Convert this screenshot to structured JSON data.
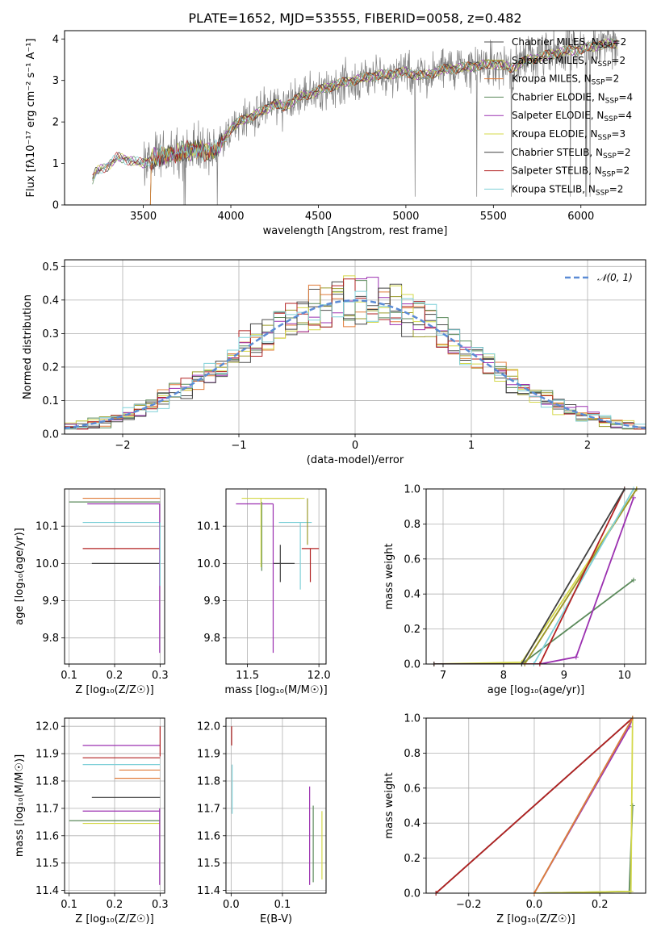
{
  "figure": {
    "title": "PLATE=1652, MJD=53555, FIBERID=0058, z=0.482"
  },
  "colors": {
    "data": "#808080",
    "Chabrier MILES": "#4f4f4f",
    "Salpeter MILES": "#9a9a2a",
    "Kroupa MILES": "#e07b39",
    "Chabrier ELODIE": "#5b8a5b",
    "Salpeter ELODIE": "#9b30b0",
    "Kroupa ELODIE": "#d4d84a",
    "Chabrier STELIB": "#404040",
    "Salpeter STELIB": "#b22222",
    "Kroupa STELIB": "#7fd0d8",
    "gauss": "#5b8bd5"
  },
  "chart_data": [
    {
      "id": "spectrum",
      "type": "line",
      "xlabel": "wavelength [Angstrom, rest frame]",
      "ylabel": "Flux [fλ10⁻¹⁷ erg cm⁻² s⁻¹ A⁻¹]",
      "xlim": [
        3050,
        6370
      ],
      "ylim": [
        0,
        4.2
      ],
      "xticks": [
        3500,
        4000,
        4500,
        5000,
        5500,
        6000
      ],
      "yticks": [
        0,
        1,
        2,
        3,
        4
      ],
      "grid": false,
      "legend_position": "top-right",
      "legend": [
        {
          "name": "Chabrier MILES",
          "nssp": "2"
        },
        {
          "name": "Salpeter MILES",
          "nssp": "2"
        },
        {
          "name": "Kroupa MILES",
          "nssp": "2"
        },
        {
          "name": "Chabrier ELODIE",
          "nssp": "4"
        },
        {
          "name": "Salpeter ELODIE",
          "nssp": "4"
        },
        {
          "name": "Kroupa ELODIE",
          "nssp": "3"
        },
        {
          "name": "Chabrier STELIB",
          "nssp": "2"
        },
        {
          "name": "Salpeter STELIB",
          "nssp": "2"
        },
        {
          "name": "Kroupa STELIB",
          "nssp": "2"
        }
      ],
      "model_continuum": {
        "x": [
          3210,
          3230,
          3300,
          3350,
          3400,
          3450,
          3500,
          3550,
          3600,
          3650,
          3700,
          3750,
          3800,
          3850,
          3900,
          3950,
          4000,
          4050,
          4100,
          4150,
          4200,
          4250,
          4300,
          4350,
          4400,
          4500,
          4600,
          4700,
          4800,
          4900,
          5000,
          5100,
          5200,
          5300,
          5400,
          5500,
          5600,
          5700,
          5800,
          5900,
          6000,
          6100,
          6200
        ],
        "y": [
          0.6,
          0.8,
          0.95,
          1.15,
          1.1,
          1.05,
          1.0,
          1.1,
          1.15,
          1.2,
          1.25,
          1.3,
          1.35,
          1.3,
          1.25,
          1.5,
          1.85,
          2.0,
          2.1,
          2.2,
          2.3,
          2.45,
          2.35,
          2.5,
          2.6,
          2.75,
          2.9,
          3.0,
          3.1,
          3.15,
          3.2,
          3.1,
          3.25,
          3.3,
          3.35,
          3.4,
          3.3,
          3.5,
          3.6,
          3.7,
          3.75,
          3.85,
          3.9
        ]
      }
    },
    {
      "id": "residuals",
      "type": "line",
      "xlabel": "(data-model)/error",
      "ylabel": "Normed distribution",
      "xlim": [
        -2.5,
        2.5
      ],
      "ylim": [
        0,
        0.52
      ],
      "xticks": [
        -2,
        -1,
        0,
        1,
        2
      ],
      "xticklabels": [
        "−2",
        "−1",
        "0",
        "1",
        "2"
      ],
      "yticks": [
        0,
        0.1,
        0.2,
        0.3,
        0.4,
        0.5
      ],
      "yticklabels": [
        "0.0",
        "0.1",
        "0.2",
        "0.3",
        "0.4",
        "0.5"
      ],
      "grid": true,
      "legend_position": "top-right",
      "gauss_label": "𝒩(0, 1)",
      "bin_edges_step": 0.1
    },
    {
      "id": "age_vs_Z",
      "type": "scatter",
      "xlabel": "Z [log₁₀(Z/Z☉)]",
      "ylabel": "age  [log₁₀(age/yr)]",
      "xlim": [
        0.09,
        0.31
      ],
      "ylim": [
        9.73,
        10.2
      ],
      "xticks": [
        0.1,
        0.2,
        0.3
      ],
      "xticklabels": [
        "0.1",
        "0.2",
        "0.3"
      ],
      "yticks": [
        9.8,
        9.9,
        10.0,
        10.1
      ],
      "yticklabels": [
        "9.8",
        "9.9",
        "10.0",
        "10.1"
      ],
      "grid": true,
      "hsegments": [
        {
          "model": "Kroupa MILES",
          "y": 10.175,
          "x0": 0.13,
          "x1": 0.3
        },
        {
          "model": "Chabrier ELODIE",
          "y": 10.165,
          "x0": 0.1,
          "x1": 0.3
        },
        {
          "model": "Salpeter ELODIE",
          "y": 10.16,
          "x0": 0.14,
          "x1": 0.3
        },
        {
          "model": "Kroupa STELIB",
          "y": 10.11,
          "x0": 0.13,
          "x1": 0.3
        },
        {
          "model": "Salpeter STELIB",
          "y": 10.04,
          "x0": 0.13,
          "x1": 0.3
        },
        {
          "model": "Chabrier STELIB",
          "y": 10.0,
          "x0": 0.15,
          "x1": 0.3
        }
      ],
      "vsegments": [
        {
          "model": "Salpeter ELODIE",
          "x": 0.299,
          "y0": 9.76,
          "y1": 10.16
        },
        {
          "model": "Kroupa STELIB",
          "x": 0.3,
          "y0": 9.94,
          "y1": 10.11
        }
      ]
    },
    {
      "id": "age_vs_mass",
      "type": "scatter",
      "xlabel": "mass [log₁₀(M/M☉)]",
      "ylabel": "",
      "xlim": [
        11.35,
        12.05
      ],
      "ylim": [
        9.73,
        10.2
      ],
      "xticks": [
        11.5,
        12.0
      ],
      "xticklabels": [
        "11.5",
        "12.0"
      ],
      "yticks": [
        9.8,
        9.9,
        10.0,
        10.1
      ],
      "yticklabels": [
        "9.8",
        "9.9",
        "10.0",
        "10.1"
      ],
      "grid": true,
      "hsegments": [
        {
          "model": "Salpeter ELODIE",
          "y": 10.16,
          "x0": 11.42,
          "x1": 11.68
        },
        {
          "model": "Kroupa MILES",
          "y": 10.175,
          "x0": 11.62,
          "x1": 11.87
        },
        {
          "model": "Kroupa ELODIE",
          "y": 10.175,
          "x0": 11.46,
          "x1": 11.9
        },
        {
          "model": "Salpeter STELIB",
          "y": 10.04,
          "x0": 11.88,
          "x1": 12.0
        },
        {
          "model": "Chabrier STELIB",
          "y": 10.0,
          "x0": 11.68,
          "x1": 11.83
        },
        {
          "model": "Kroupa STELIB",
          "y": 10.11,
          "x0": 11.72,
          "x1": 11.95
        }
      ],
      "vsegments": [
        {
          "model": "Chabrier ELODIE",
          "x": 11.6,
          "y0": 9.98,
          "y1": 10.165
        },
        {
          "model": "Salpeter ELODIE",
          "x": 11.68,
          "y0": 9.76,
          "y1": 10.16
        },
        {
          "model": "Kroupa ELODIE",
          "x": 11.595,
          "y0": 9.99,
          "y1": 10.175
        },
        {
          "model": "Chabrier STELIB",
          "x": 11.73,
          "y0": 9.95,
          "y1": 10.05
        },
        {
          "model": "Salpeter STELIB",
          "x": 11.94,
          "y0": 9.95,
          "y1": 10.04
        },
        {
          "model": "Kroupa STELIB",
          "x": 11.87,
          "y0": 9.93,
          "y1": 10.11
        },
        {
          "model": "Salpeter MILES",
          "x": 11.92,
          "y0": 10.05,
          "y1": 10.175
        }
      ]
    },
    {
      "id": "cumweight_vs_age",
      "type": "line",
      "xlabel": "age  [log₁₀(age/yr)]",
      "ylabel": "mass weight",
      "xlim": [
        6.72,
        10.35
      ],
      "ylim": [
        0,
        1.0
      ],
      "xticks": [
        7,
        8,
        9,
        10
      ],
      "xticklabels": [
        "7",
        "8",
        "9",
        "10"
      ],
      "yticks": [
        0,
        0.2,
        0.4,
        0.6,
        0.8,
        1.0
      ],
      "yticklabels": [
        "0.0",
        "0.2",
        "0.4",
        "0.6",
        "0.8",
        "1.0"
      ],
      "grid": true,
      "series": [
        {
          "model": "Chabrier ELODIE",
          "x": [
            6.85,
            8.3,
            10.15
          ],
          "y": [
            0.0,
            0.0,
            0.48
          ]
        },
        {
          "model": "Salpeter ELODIE",
          "x": [
            6.85,
            8.6,
            9.2,
            10.15
          ],
          "y": [
            0.0,
            0.0,
            0.04,
            0.95
          ]
        },
        {
          "model": "Kroupa ELODIE",
          "x": [
            6.85,
            8.3,
            10.2
          ],
          "y": [
            0.0,
            0.01,
            1.0
          ]
        },
        {
          "model": "Kroupa MILES",
          "x": [
            6.85,
            8.35,
            10.2
          ],
          "y": [
            0.0,
            0.0,
            1.0
          ]
        },
        {
          "model": "Salpeter MILES",
          "x": [
            6.85,
            8.35,
            10.2
          ],
          "y": [
            0.0,
            0.0,
            1.0
          ]
        },
        {
          "model": "Kroupa STELIB",
          "x": [
            6.85,
            8.5,
            10.15
          ],
          "y": [
            0.0,
            0.0,
            1.0
          ]
        },
        {
          "model": "Salpeter STELIB",
          "x": [
            6.85,
            8.6,
            10.0
          ],
          "y": [
            0.0,
            0.0,
            1.0
          ]
        },
        {
          "model": "Chabrier STELIB",
          "x": [
            6.85,
            8.3,
            10.0
          ],
          "y": [
            0.0,
            0.0,
            1.0
          ]
        }
      ]
    },
    {
      "id": "mass_vs_Z",
      "type": "scatter",
      "xlabel": "Z [log₁₀(Z/Z☉)]",
      "ylabel": "mass [log₁₀(M/M☉)]",
      "xlim": [
        0.09,
        0.31
      ],
      "ylim": [
        11.39,
        12.03
      ],
      "xticks": [
        0.1,
        0.2,
        0.3
      ],
      "xticklabels": [
        "0.1",
        "0.2",
        "0.3"
      ],
      "yticks": [
        11.4,
        11.5,
        11.6,
        11.7,
        11.8,
        11.9,
        12.0
      ],
      "yticklabels": [
        "11.4",
        "11.5",
        "11.6",
        "11.7",
        "11.8",
        "11.9",
        "12.0"
      ],
      "grid": true,
      "hsegments": [
        {
          "model": "Salpeter ELODIE",
          "y": 11.93,
          "x0": 0.13,
          "x1": 0.3
        },
        {
          "model": "Salpeter STELIB",
          "y": 11.885,
          "x0": 0.13,
          "x1": 0.3
        },
        {
          "model": "Kroupa STELIB",
          "y": 11.86,
          "x0": 0.13,
          "x1": 0.3
        },
        {
          "model": "Kroupa MILES",
          "y": 11.84,
          "x0": 0.21,
          "x1": 0.3
        },
        {
          "model": "Kroupa MILES",
          "y": 11.81,
          "x0": 0.2,
          "x1": 0.3
        },
        {
          "model": "Chabrier STELIB",
          "y": 11.74,
          "x0": 0.15,
          "x1": 0.3
        },
        {
          "model": "Salpeter ELODIE",
          "y": 11.69,
          "x0": 0.13,
          "x1": 0.3
        },
        {
          "model": "Chabrier ELODIE",
          "y": 11.655,
          "x0": 0.1,
          "x1": 0.3
        },
        {
          "model": "Kroupa ELODIE",
          "y": 11.645,
          "x0": 0.13,
          "x1": 0.3
        }
      ],
      "vsegments": [
        {
          "model": "Salpeter ELODIE",
          "x": 0.299,
          "y0": 11.42,
          "y1": 11.7
        },
        {
          "model": "Salpeter STELIB",
          "x": 0.3,
          "y0": 11.89,
          "y1": 12.0
        }
      ]
    },
    {
      "id": "mass_vs_ebv",
      "type": "scatter",
      "xlabel": "E(B-V)",
      "ylabel": "",
      "xlim": [
        -0.01,
        0.185
      ],
      "ylim": [
        11.39,
        12.03
      ],
      "xticks": [
        0.0,
        0.1
      ],
      "xticklabels": [
        "0.0",
        "0.1"
      ],
      "yticks": [
        11.4,
        11.5,
        11.6,
        11.7,
        11.8,
        11.9,
        12.0
      ],
      "yticklabels": [
        "11.4",
        "11.5",
        "11.6",
        "11.7",
        "11.8",
        "11.9",
        "12.0"
      ],
      "grid": true,
      "vsegments": [
        {
          "model": "Salpeter STELIB",
          "x": 0.001,
          "y0": 11.93,
          "y1": 12.0
        },
        {
          "model": "Kroupa STELIB",
          "x": 0.002,
          "y0": 11.68,
          "y1": 11.86
        },
        {
          "model": "Salpeter ELODIE",
          "x": 0.153,
          "y0": 11.42,
          "y1": 11.78
        },
        {
          "model": "Chabrier ELODIE",
          "x": 0.16,
          "y0": 11.43,
          "y1": 11.71
        },
        {
          "model": "Kroupa ELODIE",
          "x": 0.177,
          "y0": 11.44,
          "y1": 11.69
        }
      ]
    },
    {
      "id": "cumweight_vs_Z",
      "type": "line",
      "xlabel": "Z [log₁₀(Z/Z☉)]",
      "ylabel": "mass weight",
      "xlim": [
        -0.33,
        0.34
      ],
      "ylim": [
        0,
        1.0
      ],
      "xticks": [
        -0.2,
        0.0,
        0.2
      ],
      "xticklabels": [
        "−0.2",
        "0.0",
        "0.2"
      ],
      "yticks": [
        0,
        0.2,
        0.4,
        0.6,
        0.8,
        1.0
      ],
      "yticklabels": [
        "0.0",
        "0.2",
        "0.4",
        "0.6",
        "0.8",
        "1.0"
      ],
      "grid": true,
      "series": [
        {
          "model": "Chabrier STELIB",
          "x": [
            -0.3,
            0.3
          ],
          "y": [
            0.0,
            1.0
          ]
        },
        {
          "model": "Salpeter STELIB",
          "x": [
            -0.3,
            0.3
          ],
          "y": [
            0.0,
            1.0
          ]
        },
        {
          "model": "Salpeter ELODIE",
          "x": [
            0.0,
            0.29,
            0.3
          ],
          "y": [
            0.0,
            0.95,
            1.0
          ]
        },
        {
          "model": "Kroupa STELIB",
          "x": [
            0.0,
            0.3
          ],
          "y": [
            0.0,
            1.0
          ]
        },
        {
          "model": "Chabrier ELODIE",
          "x": [
            0.0,
            0.29,
            0.3
          ],
          "y": [
            0.0,
            0.01,
            0.5
          ]
        },
        {
          "model": "Kroupa ELODIE",
          "x": [
            0.0,
            0.295,
            0.3
          ],
          "y": [
            0.0,
            0.01,
            1.0
          ]
        },
        {
          "model": "Kroupa MILES",
          "x": [
            0.0,
            0.3
          ],
          "y": [
            0.0,
            1.0
          ]
        }
      ]
    }
  ]
}
